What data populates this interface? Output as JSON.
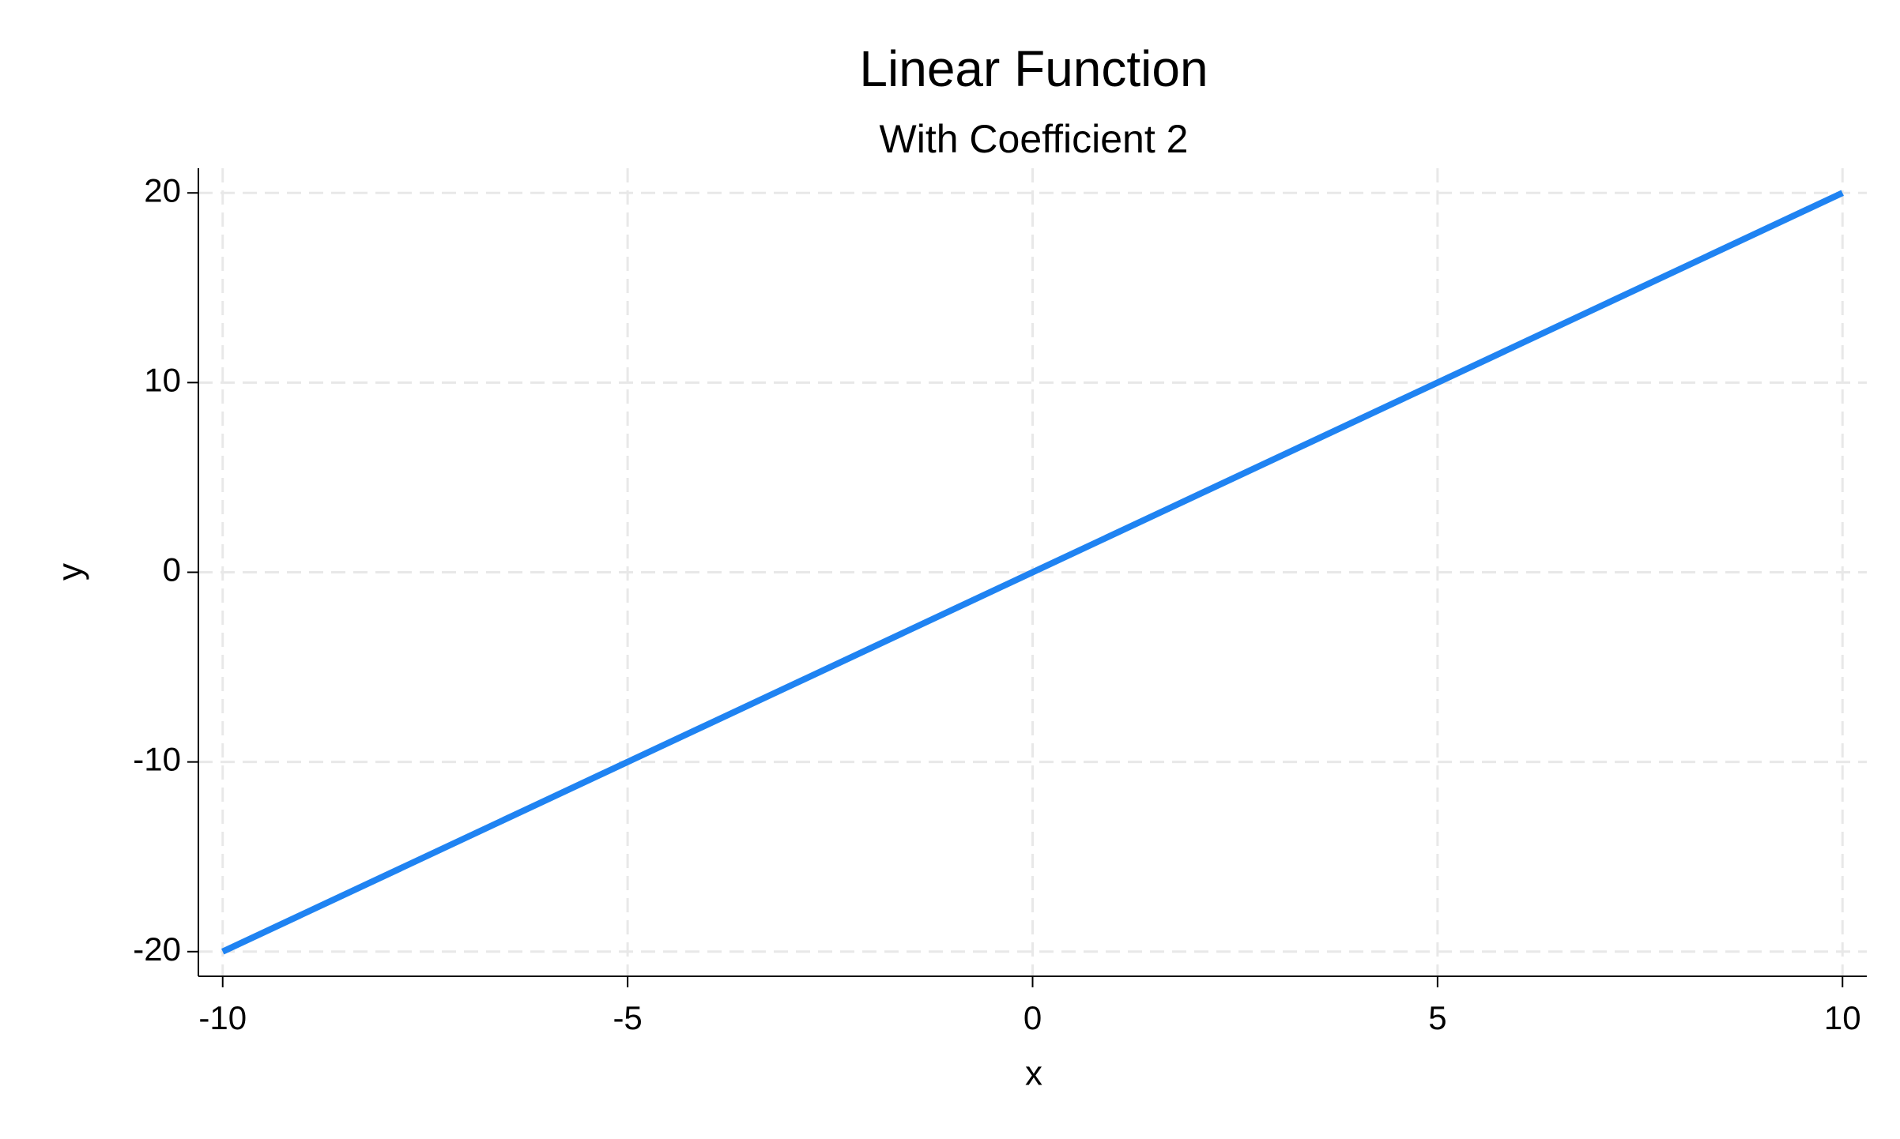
{
  "chart_data": {
    "type": "line",
    "title": "Linear Function",
    "subtitle": "With Coefficient 2",
    "x_label": "x",
    "y_label": "y",
    "x": [
      -10,
      -5,
      0,
      5,
      10
    ],
    "series": [
      {
        "name": "y",
        "color": "#1f83f2",
        "values": [
          -20,
          -10,
          0,
          10,
          20
        ]
      }
    ],
    "xlim": [
      -10.3,
      10.3
    ],
    "xticks": [
      -10,
      -5,
      0,
      5,
      10
    ],
    "ylim": [
      -21.3,
      21.3
    ],
    "yticks": [
      -20,
      -10,
      0,
      10,
      20
    ],
    "grid": true
  }
}
